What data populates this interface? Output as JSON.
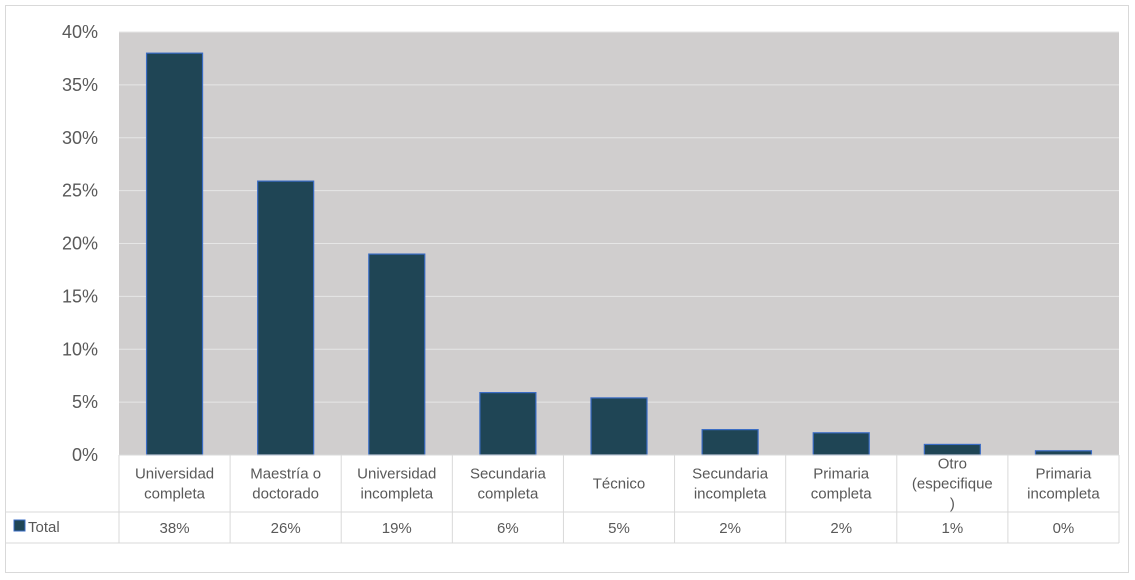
{
  "chart_data": {
    "type": "bar",
    "title": "",
    "categories": [
      [
        "Universidad",
        "completa"
      ],
      [
        "Maestría o",
        "doctorado"
      ],
      [
        "Universidad",
        "incompleta"
      ],
      [
        "Secundaria",
        "completa"
      ],
      [
        "Técnico"
      ],
      [
        "Secundaria",
        "incompleta"
      ],
      [
        "Primaria",
        "completa"
      ],
      [
        "Otro",
        "(especifique",
        ")"
      ],
      [
        "Primaria",
        "incompleta"
      ]
    ],
    "series": [
      {
        "name": "Total",
        "values": [
          0.38,
          0.259,
          0.19,
          0.059,
          0.054,
          0.024,
          0.021,
          0.01,
          0.004
        ],
        "labels": [
          "38%",
          "26%",
          "19%",
          "6%",
          "5%",
          "2%",
          "2%",
          "1%",
          "0%"
        ],
        "color": "#1f4555"
      }
    ],
    "yticks": [
      "0%",
      "5%",
      "10%",
      "15%",
      "20%",
      "25%",
      "30%",
      "35%",
      "40%"
    ],
    "ylim": [
      0,
      0.4
    ],
    "grid": true,
    "legend": "data-table-left",
    "plot_background": "#d0cece",
    "bar_edge_color": "#3a6cc4"
  }
}
